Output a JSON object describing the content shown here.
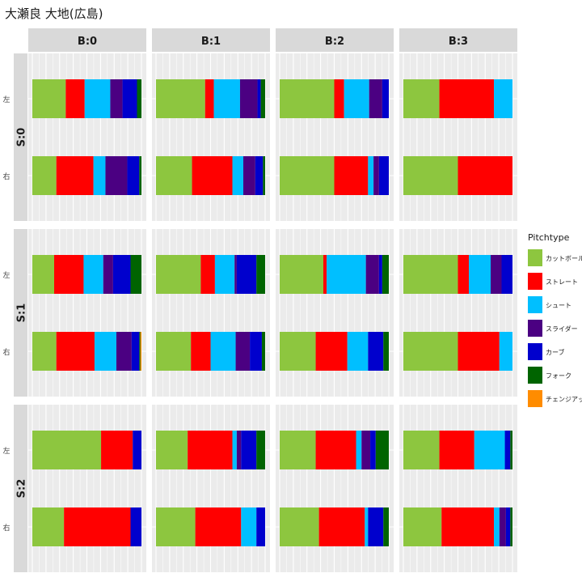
{
  "chart_data": {
    "type": "bar",
    "orientation": "horizontal",
    "stacked": "proportional",
    "title": "大瀬良 大地(広島)",
    "facet_cols": [
      "B:0",
      "B:1",
      "B:2",
      "B:3"
    ],
    "facet_rows": [
      "S:0",
      "S:1",
      "S:2"
    ],
    "categories": [
      "左",
      "右"
    ],
    "xlim": [
      0,
      1
    ],
    "grid": true,
    "legend": {
      "title": "Pitchtype",
      "position": "right",
      "entries": [
        "カットボール",
        "ストレート",
        "シュート",
        "スライダー",
        "カーブ",
        "フォーク",
        "チェンジアップ"
      ]
    },
    "colors": [
      "#8dc63f",
      "#ff0000",
      "#00bfff",
      "#4b0082",
      "#0000cd",
      "#006400",
      "#ff8c00"
    ],
    "panels": [
      {
        "row": "S:0",
        "col": "B:0",
        "bars": [
          {
            "category": "左",
            "values": [
              0.3,
              0.17,
              0.23,
              0.11,
              0.13,
              0.04,
              0.0
            ]
          },
          {
            "category": "右",
            "values": [
              0.22,
              0.34,
              0.11,
              0.2,
              0.11,
              0.02,
              0.0
            ]
          }
        ]
      },
      {
        "row": "S:0",
        "col": "B:1",
        "bars": [
          {
            "category": "左",
            "values": [
              0.45,
              0.08,
              0.24,
              0.16,
              0.03,
              0.04,
              0.0
            ]
          },
          {
            "category": "右",
            "values": [
              0.33,
              0.37,
              0.1,
              0.11,
              0.07,
              0.02,
              0.0
            ]
          }
        ]
      },
      {
        "row": "S:0",
        "col": "B:2",
        "bars": [
          {
            "category": "左",
            "values": [
              0.5,
              0.09,
              0.23,
              0.12,
              0.06,
              0.0,
              0.0
            ]
          },
          {
            "category": "右",
            "values": [
              0.5,
              0.31,
              0.05,
              0.05,
              0.09,
              0.0,
              0.0
            ]
          }
        ]
      },
      {
        "row": "S:0",
        "col": "B:3",
        "bars": [
          {
            "category": "左",
            "values": [
              0.33,
              0.5,
              0.17,
              0.0,
              0.0,
              0.0,
              0.0
            ]
          },
          {
            "category": "右",
            "values": [
              0.5,
              0.5,
              0.0,
              0.0,
              0.0,
              0.0,
              0.0
            ]
          }
        ]
      },
      {
        "row": "S:1",
        "col": "B:0",
        "bars": [
          {
            "category": "左",
            "values": [
              0.2,
              0.27,
              0.18,
              0.09,
              0.16,
              0.1,
              0.0
            ]
          },
          {
            "category": "右",
            "values": [
              0.22,
              0.35,
              0.2,
              0.14,
              0.07,
              0.01,
              0.01
            ]
          }
        ]
      },
      {
        "row": "S:1",
        "col": "B:1",
        "bars": [
          {
            "category": "左",
            "values": [
              0.41,
              0.13,
              0.18,
              0.02,
              0.18,
              0.08,
              0.0
            ]
          },
          {
            "category": "右",
            "values": [
              0.32,
              0.18,
              0.23,
              0.13,
              0.11,
              0.03,
              0.0
            ]
          }
        ]
      },
      {
        "row": "S:1",
        "col": "B:2",
        "bars": [
          {
            "category": "左",
            "values": [
              0.4,
              0.03,
              0.36,
              0.12,
              0.03,
              0.06,
              0.0
            ]
          },
          {
            "category": "右",
            "values": [
              0.33,
              0.29,
              0.19,
              0.0,
              0.14,
              0.05,
              0.0
            ]
          }
        ]
      },
      {
        "row": "S:1",
        "col": "B:3",
        "bars": [
          {
            "category": "左",
            "values": [
              0.5,
              0.1,
              0.2,
              0.1,
              0.1,
              0.0,
              0.0
            ]
          },
          {
            "category": "右",
            "values": [
              0.5,
              0.38,
              0.12,
              0.0,
              0.0,
              0.0,
              0.0
            ]
          }
        ]
      },
      {
        "row": "S:2",
        "col": "B:0",
        "bars": [
          {
            "category": "左",
            "values": [
              0.63,
              0.29,
              0.0,
              0.0,
              0.08,
              0.0,
              0.0
            ]
          },
          {
            "category": "右",
            "values": [
              0.29,
              0.61,
              0.0,
              0.0,
              0.1,
              0.0,
              0.0
            ]
          }
        ]
      },
      {
        "row": "S:2",
        "col": "B:1",
        "bars": [
          {
            "category": "左",
            "values": [
              0.29,
              0.41,
              0.04,
              0.04,
              0.14,
              0.08,
              0.0
            ]
          },
          {
            "category": "右",
            "values": [
              0.36,
              0.42,
              0.14,
              0.0,
              0.08,
              0.0,
              0.0
            ]
          }
        ]
      },
      {
        "row": "S:2",
        "col": "B:2",
        "bars": [
          {
            "category": "左",
            "values": [
              0.33,
              0.37,
              0.05,
              0.08,
              0.05,
              0.12,
              0.0
            ]
          },
          {
            "category": "右",
            "values": [
              0.36,
              0.42,
              0.03,
              0.0,
              0.14,
              0.05,
              0.0
            ]
          }
        ]
      },
      {
        "row": "S:2",
        "col": "B:3",
        "bars": [
          {
            "category": "左",
            "values": [
              0.33,
              0.32,
              0.28,
              0.0,
              0.05,
              0.02,
              0.0
            ]
          },
          {
            "category": "右",
            "values": [
              0.35,
              0.48,
              0.05,
              0.06,
              0.04,
              0.02,
              0.0
            ]
          }
        ]
      }
    ]
  }
}
